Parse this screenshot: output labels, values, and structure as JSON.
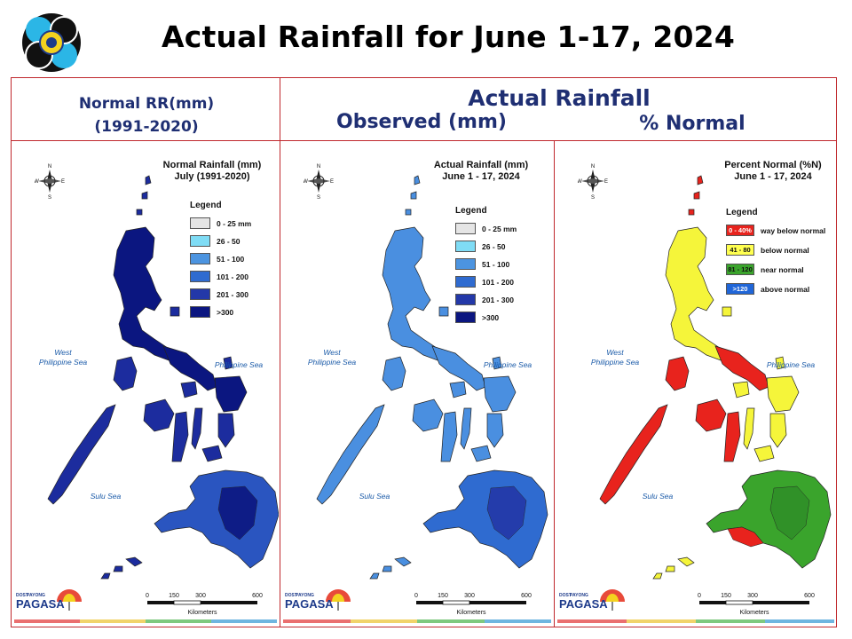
{
  "slide_title": "Actual Rainfall for June 1-17, 2024",
  "headers": {
    "normal_line1": "Normal RR(mm)",
    "normal_line2": "(1991-2020)",
    "actual": "Actual Rainfall",
    "observed": "Observed (mm)",
    "percent": "% Normal"
  },
  "panels": [
    {
      "id": "normal",
      "title_line1": "Normal Rainfall (mm)",
      "title_line2": "July (1991-2020)",
      "legend_title": "Legend",
      "legend": [
        {
          "label": "0 - 25 mm",
          "color": "#e5e5e5",
          "swatch_text": ""
        },
        {
          "label": "26 - 50",
          "color": "#7fdcf5",
          "swatch_text": ""
        },
        {
          "label": "51 - 100",
          "color": "#4c94e0",
          "swatch_text": ""
        },
        {
          "label": "101 - 200",
          "color": "#2f6bd0",
          "swatch_text": ""
        },
        {
          "label": "201 - 300",
          "color": "#2338a8",
          "swatch_text": ""
        },
        {
          "label": ">300",
          "color": "#0b1680",
          "swatch_text": ""
        }
      ],
      "main_color": "#1c2c9e",
      "accent_color": "#0b1680",
      "south_color": "#2a55c0"
    },
    {
      "id": "observed",
      "title_line1": "Actual Rainfall (mm)",
      "title_line2": "June 1 - 17, 2024",
      "legend_title": "Legend",
      "legend": [
        {
          "label": "0 - 25 mm",
          "color": "#e5e5e5",
          "swatch_text": ""
        },
        {
          "label": "26 - 50",
          "color": "#7fdcf5",
          "swatch_text": ""
        },
        {
          "label": "51 - 100",
          "color": "#4c94e0",
          "swatch_text": ""
        },
        {
          "label": "101 - 200",
          "color": "#2f6bd0",
          "swatch_text": ""
        },
        {
          "label": "201 - 300",
          "color": "#2338a8",
          "swatch_text": ""
        },
        {
          "label": ">300",
          "color": "#0b1680",
          "swatch_text": ""
        }
      ],
      "main_color": "#4a8fe0",
      "accent_color": "#2f6bd0",
      "south_color": "#2f6bd0"
    },
    {
      "id": "percent",
      "title_line1": "Percent Normal (%N)",
      "title_line2": "June 1 - 17, 2024",
      "legend_title": "Legend",
      "legend": [
        {
          "label": "way below normal",
          "color": "#e8231d",
          "swatch_text": "0 - 40%"
        },
        {
          "label": "below normal",
          "color": "#ffff50",
          "swatch_text": "41 - 80"
        },
        {
          "label": "near normal",
          "color": "#3aa42c",
          "swatch_text": "81 - 120"
        },
        {
          "label": "above normal",
          "color": "#2066d8",
          "swatch_text": ">120"
        }
      ],
      "main_color": "#f5f53a",
      "accent_color": "#e8231d",
      "south_color": "#3aa42c"
    }
  ],
  "sea_labels": {
    "west_line1": "West",
    "west_line2": "Philippine Sea",
    "east": "Philippine Sea",
    "sulu": "Sulu Sea"
  },
  "compass": {
    "n": "N",
    "s": "S",
    "e": "E",
    "w": "W"
  },
  "scale": {
    "ticks": [
      "0",
      "150",
      "300",
      "600"
    ],
    "unit": "Kilometers"
  },
  "brand": {
    "agency": "PAGASA",
    "tag": "DOST",
    "sub": "PAYONG"
  },
  "stripe_colors": [
    "#ea6f6f",
    "#f1d36a",
    "#7fc97f",
    "#6fb6e0"
  ]
}
